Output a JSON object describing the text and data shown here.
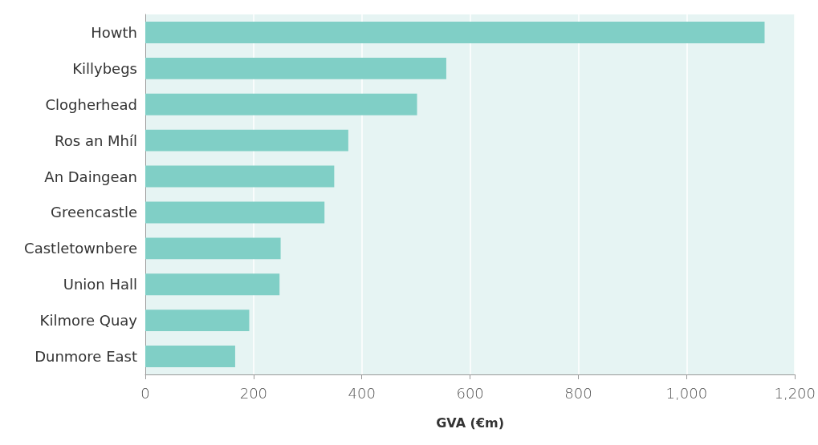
{
  "chart_data": {
    "type": "bar",
    "orientation": "horizontal",
    "xlabel": "GVA (€m)",
    "categories": [
      "Howth",
      "Killybegs",
      "Clogherhead",
      "Ros an Mhíl",
      "An Daingean",
      "Greencastle",
      "Castletownbere",
      "Union Hall",
      "Kilmore Quay",
      "Dunmore East"
    ],
    "values": [
      1144,
      556,
      502,
      375,
      349,
      331,
      250,
      248,
      192,
      166
    ],
    "color": "#80cfc6",
    "xlim": [
      0,
      1200
    ],
    "xticks": [
      0,
      200,
      400,
      600,
      800,
      {
        "value": 1000,
        "label": "1,000"
      },
      {
        "value": 1200,
        "label": "1,200"
      }
    ],
    "grid": "x"
  }
}
